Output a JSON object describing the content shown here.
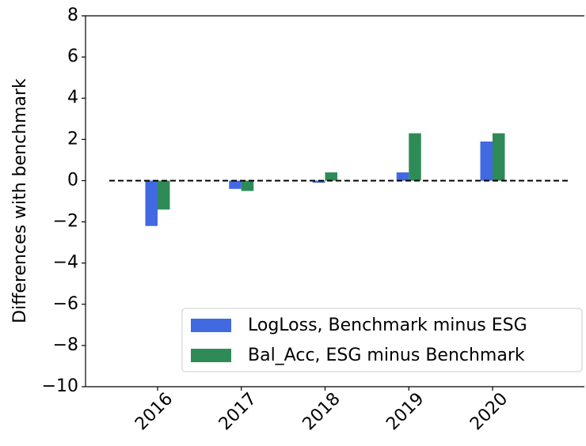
{
  "chart_data": {
    "type": "bar",
    "y_label": "Differences with benchmark",
    "categories": [
      "2016",
      "2017",
      "2018",
      "2019",
      "2020"
    ],
    "series": [
      {
        "name": "LogLoss, Benchmark minus ESG",
        "color": "#4169e1",
        "values": [
          -2.2,
          -0.4,
          -0.1,
          0.4,
          1.9
        ]
      },
      {
        "name": "Bal_Acc, ESG minus Benchmark",
        "color": "#2e8b57",
        "values": [
          -1.4,
          -0.5,
          0.4,
          2.3,
          2.3
        ]
      }
    ],
    "ylim": [
      -10,
      8
    ],
    "yticks": [
      {
        "value": -10,
        "label": "−10"
      },
      {
        "value": -8,
        "label": "−8"
      },
      {
        "value": -6,
        "label": "−6"
      },
      {
        "value": -4,
        "label": "−4"
      },
      {
        "value": -2,
        "label": "−2"
      },
      0,
      2,
      4,
      6,
      8
    ],
    "reference_line": 0,
    "legend": "lower right",
    "grid": false
  }
}
